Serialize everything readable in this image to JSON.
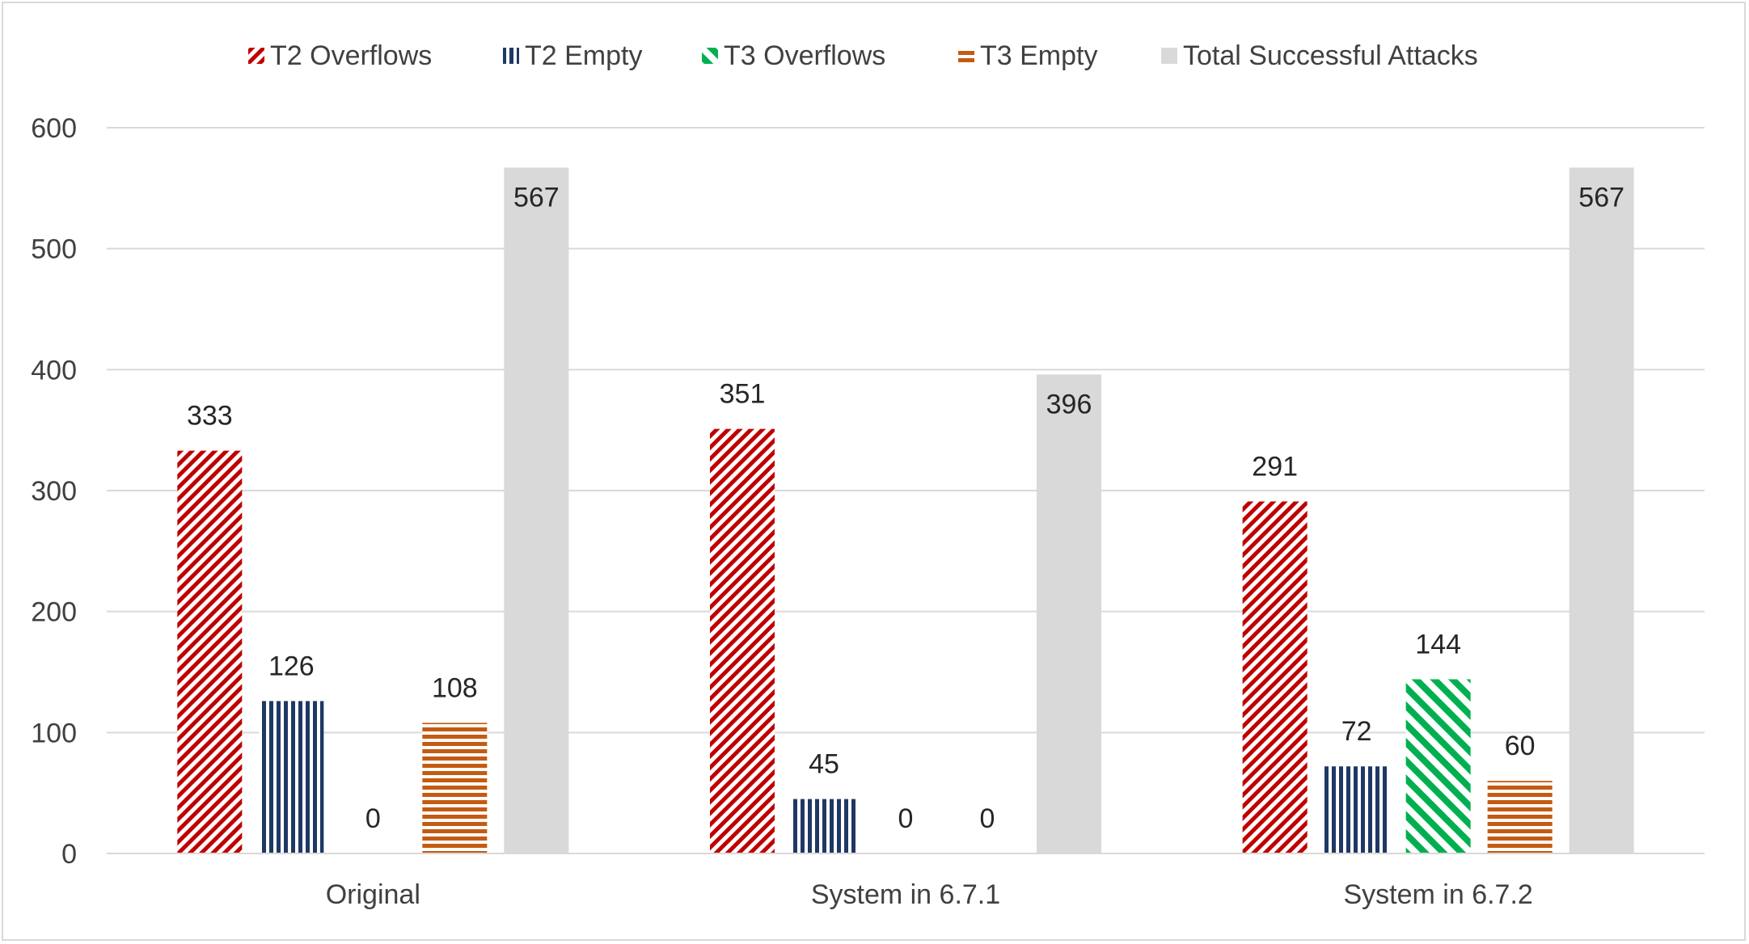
{
  "chart_data": {
    "type": "bar",
    "title": "",
    "xlabel": "",
    "ylabel": "",
    "categories": [
      "Original",
      "System in 6.7.1",
      "System in 6.7.2"
    ],
    "ylim": [
      0,
      600
    ],
    "yticks": [
      0,
      100,
      200,
      300,
      400,
      500,
      600
    ],
    "grid": true,
    "legend_position": "top",
    "series": [
      {
        "name": "T2 Overflows",
        "values": [
          333,
          351,
          291
        ],
        "color": "#c00000",
        "pattern": "diagonal-stripes-dense"
      },
      {
        "name": "T2 Empty",
        "values": [
          126,
          45,
          72
        ],
        "color": "#1f3864",
        "pattern": "vertical-stripes"
      },
      {
        "name": "T3 Overflows",
        "values": [
          0,
          0,
          144
        ],
        "color": "#00b050",
        "pattern": "diagonal-stripes-wide"
      },
      {
        "name": "T3 Empty",
        "values": [
          108,
          0,
          60
        ],
        "color": "#c55a11",
        "pattern": "horizontal-stripes"
      },
      {
        "name": "Total Successful Attacks",
        "values": [
          567,
          396,
          567
        ],
        "color": "#d9d9d9",
        "pattern": "solid"
      }
    ],
    "data_labels": [
      [
        "333",
        "126",
        "0",
        "108",
        "567"
      ],
      [
        "351",
        "45",
        "0",
        "0",
        "396"
      ],
      [
        "291",
        "72",
        "144",
        "60",
        "567"
      ]
    ]
  }
}
